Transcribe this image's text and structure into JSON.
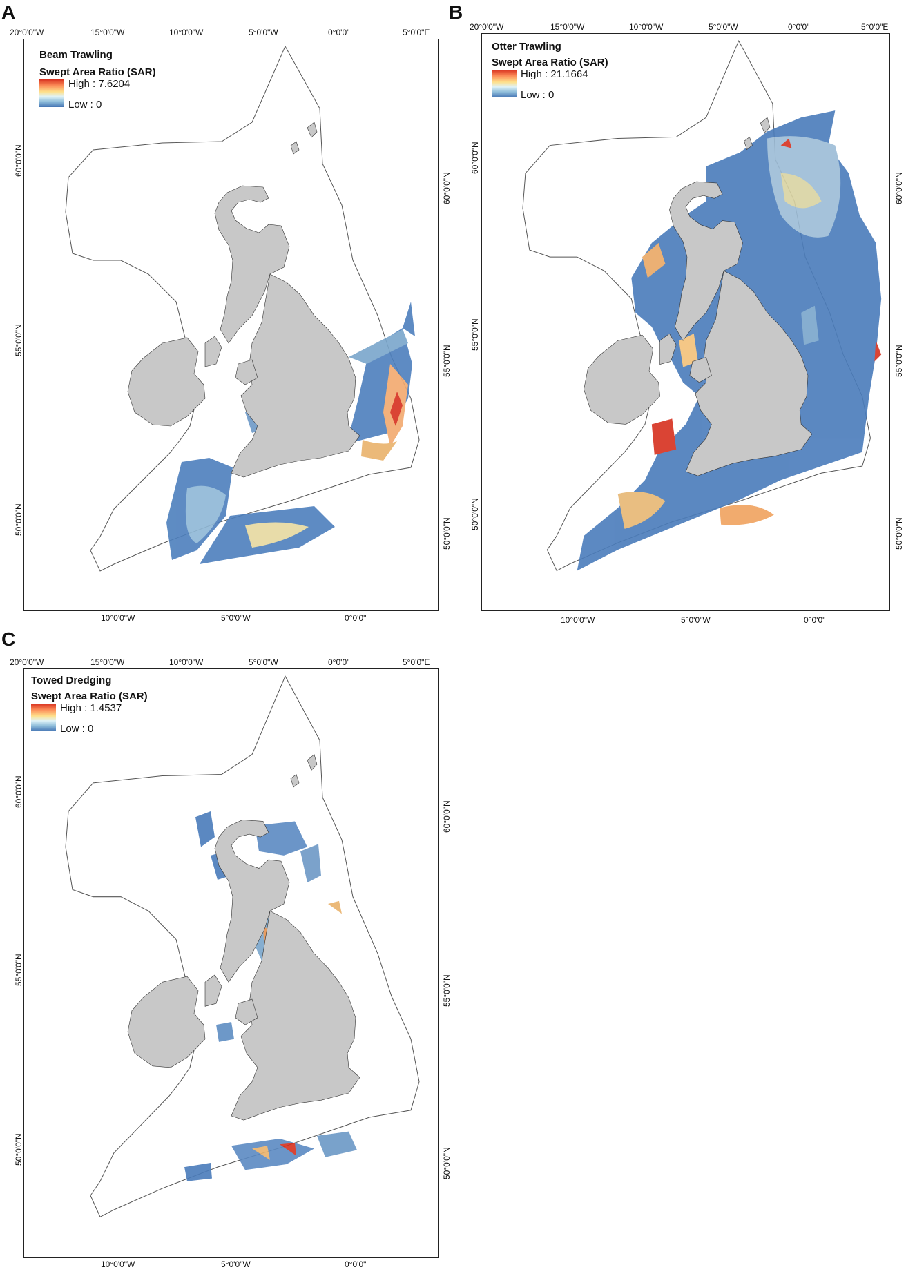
{
  "colors": {
    "land": "#c8c8c8",
    "land_outline": "#333333",
    "boundary": "#555555",
    "sar_low": "#4575b4",
    "sar_mid": "#fee08b",
    "sar_high": "#d7301f"
  },
  "legend_common": {
    "title": "Swept Area Ratio (SAR)",
    "low_label": "Low : 0"
  },
  "panels": [
    {
      "letter": "A",
      "title": "Beam Trawling",
      "high_label": "High : 7.6204",
      "top_ticks": [
        "20°0'0\"W",
        "15°0'0\"W",
        "10°0'0\"W",
        "5°0'0\"W",
        "0°0'0\"",
        "5°0'0\"E"
      ],
      "bottom_ticks": [
        "10°0'0\"W",
        "5°0'0\"W",
        "0°0'0\""
      ],
      "left_ticks": [
        "60°0'0\"N",
        "55°0'0\"N",
        "50°0'0\"N"
      ],
      "right_ticks": [
        "60°0'0\"N",
        "55°0'0\"N",
        "50°0'0\"N"
      ]
    },
    {
      "letter": "B",
      "title": "Otter Trawling",
      "high_label": "High : 21.1664",
      "top_ticks": [
        "20°0'0\"W",
        "15°0'0\"W",
        "10°0'0\"W",
        "5°0'0\"W",
        "0°0'0\"",
        "5°0'0\"E"
      ],
      "bottom_ticks": [
        "10°0'0\"W",
        "5°0'0\"W",
        "0°0'0\""
      ],
      "left_ticks": [
        "60°0'0\"N",
        "55°0'0\"N",
        "50°0'0\"N"
      ],
      "right_ticks": [
        "60°0'0\"N",
        "55°0'0\"N",
        "50°0'0\"N"
      ]
    },
    {
      "letter": "C",
      "title": "Towed Dredging",
      "high_label": "High : 1.4537",
      "top_ticks": [
        "20°0'0\"W",
        "15°0'0\"W",
        "10°0'0\"W",
        "5°0'0\"W",
        "0°0'0\"",
        "5°0'0\"E"
      ],
      "bottom_ticks": [
        "10°0'0\"W",
        "5°0'0\"W",
        "0°0'0\""
      ],
      "left_ticks": [
        "60°0'0\"N",
        "55°0'0\"N",
        "50°0'0\"N"
      ],
      "right_ticks": [
        "60°0'0\"N",
        "55°0'0\"N",
        "50°0'0\"N"
      ]
    }
  ]
}
